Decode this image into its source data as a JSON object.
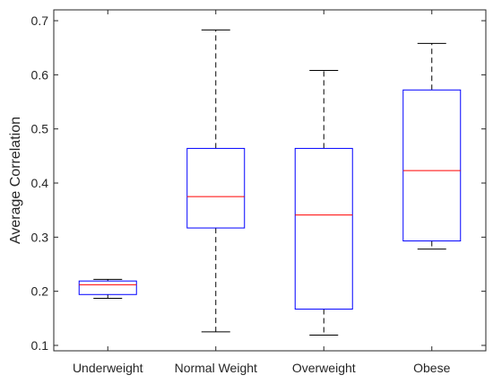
{
  "chart_data": {
    "type": "boxplot",
    "title": "",
    "xlabel": "",
    "ylabel": "Average Correlation",
    "ylim": [
      0.09,
      0.72
    ],
    "yticks": [
      0.1,
      0.2,
      0.3,
      0.4,
      0.5,
      0.6,
      0.7
    ],
    "ytick_labels": [
      "0.1",
      "0.2",
      "0.3",
      "0.4",
      "0.5",
      "0.6",
      "0.7"
    ],
    "categories": [
      "Underweight",
      "Normal Weight",
      "Overweight",
      "Obese"
    ],
    "boxes": [
      {
        "whisker_low": 0.187,
        "q1": 0.194,
        "median": 0.212,
        "q3": 0.219,
        "whisker_high": 0.222
      },
      {
        "whisker_low": 0.125,
        "q1": 0.317,
        "median": 0.375,
        "q3": 0.464,
        "whisker_high": 0.683
      },
      {
        "whisker_low": 0.119,
        "q1": 0.167,
        "median": 0.341,
        "q3": 0.464,
        "whisker_high": 0.608
      },
      {
        "whisker_low": 0.278,
        "q1": 0.293,
        "median": 0.423,
        "q3": 0.572,
        "whisker_high": 0.658
      }
    ],
    "grid": false,
    "colors": {
      "box": "#0000ff",
      "median": "#ff0000",
      "whisker": "#000000",
      "axis": "#262626"
    }
  }
}
